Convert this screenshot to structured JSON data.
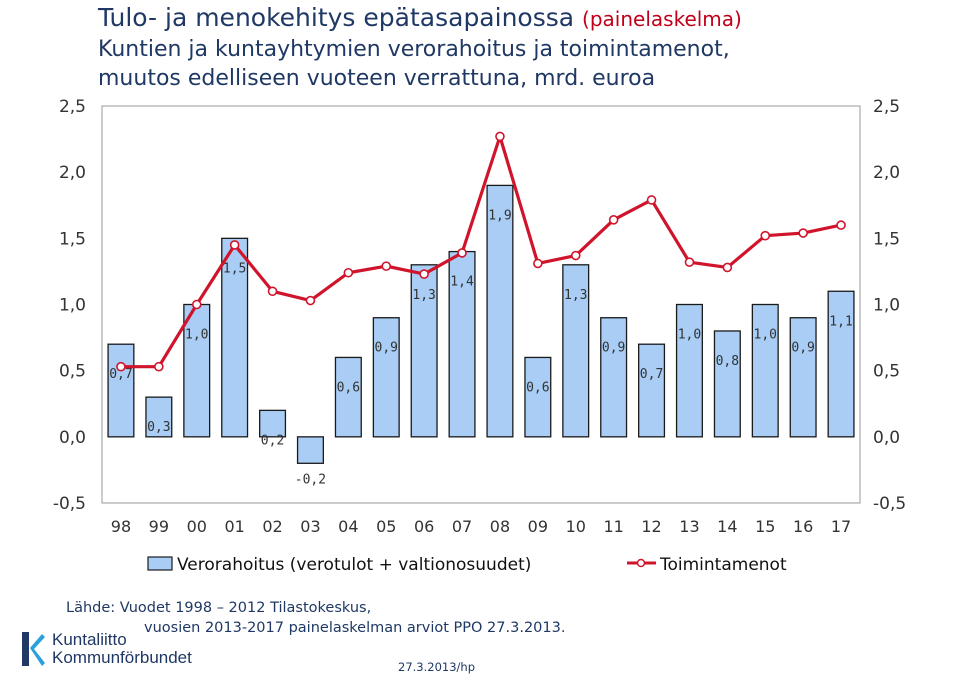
{
  "title": "Tulo- ja menokehitys epätasapainossa",
  "title_note": "(painelaskelma)",
  "subtitle_line1": "Kuntien ja kuntayhtymien verorahoitus ja toimintamenot,",
  "subtitle_line2": "muutos edelliseen vuoteen verrattuna, mrd. euroa",
  "colors": {
    "bar_fill": "#a9cdf5",
    "bar_stroke": "#1a1a1a",
    "line": "#d0142c",
    "marker_fill": "#ffffff",
    "frame": "#9a9a9a"
  },
  "chart_data": {
    "type": "bar",
    "categories": [
      "98",
      "99",
      "00",
      "01",
      "02",
      "03",
      "04",
      "05",
      "06",
      "07",
      "08",
      "09",
      "10",
      "11",
      "12",
      "13",
      "14",
      "15",
      "16",
      "17"
    ],
    "series": [
      {
        "name": "Verorahoitus (verotulot + valtionosuudet)",
        "type": "bar",
        "values": [
          0.7,
          0.3,
          1.0,
          1.5,
          0.2,
          -0.2,
          0.6,
          0.9,
          1.3,
          1.4,
          1.9,
          0.6,
          1.3,
          0.9,
          0.7,
          1.0,
          0.8,
          1.0,
          0.9,
          1.1
        ],
        "labels": [
          "0,7",
          "0,3",
          "1,0",
          "1,5",
          "0,2",
          "-0,2",
          "0,6",
          "0,9",
          "1,3",
          "1,4",
          "1,9",
          "0,6",
          "1,3",
          "0,9",
          "0,7",
          "1,0",
          "0,8",
          "1,0",
          "0,9",
          "1,1"
        ]
      },
      {
        "name": "Toimintamenot",
        "type": "line",
        "values": [
          0.53,
          0.53,
          1.0,
          1.45,
          1.1,
          1.03,
          1.24,
          1.29,
          1.23,
          1.39,
          2.27,
          1.31,
          1.37,
          1.64,
          1.79,
          1.32,
          1.28,
          1.52,
          1.54,
          1.6
        ]
      }
    ],
    "ylim": [
      -0.5,
      2.5
    ],
    "yticks": [
      "-0,5",
      "0,0",
      "0,5",
      "1,0",
      "1,5",
      "2,0",
      "2,5"
    ],
    "legend_position": "bottom",
    "grid": false
  },
  "source_line1": "Lähde: Vuodet 1998 – 2012 Tilastokeskus,",
  "source_line2": "vuosien 2013-2017 painelaskelman arviot PPO 27.3.2013.",
  "logo_line1": "Kuntaliitto",
  "logo_line2": "Kommunförbundet",
  "footer": "27.3.2013/hp"
}
